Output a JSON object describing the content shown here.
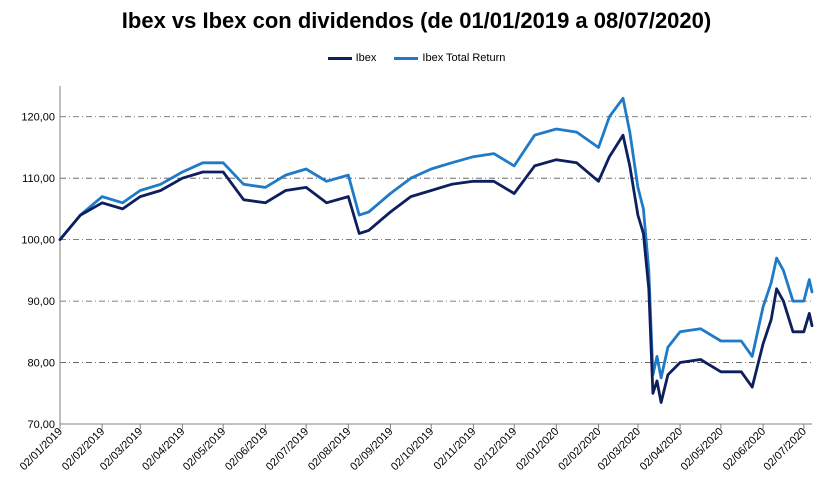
{
  "chart_data": {
    "type": "line",
    "title": "Ibex vs Ibex con dividendos (de 01/01/2019 a 08/07/2020)",
    "xlabel": "",
    "ylabel": "",
    "ylim": [
      70,
      125
    ],
    "y_ticks": [
      "70,00",
      "80,00",
      "90,00",
      "100,00",
      "110,00",
      "120,00"
    ],
    "x_ticks": [
      "02/01/2019",
      "02/02/2019",
      "02/03/2019",
      "02/04/2019",
      "02/05/2019",
      "02/06/2019",
      "02/07/2019",
      "02/08/2019",
      "02/09/2019",
      "02/10/2019",
      "02/11/2019",
      "02/12/2019",
      "02/01/2020",
      "02/02/2020",
      "02/03/2020",
      "02/04/2020",
      "02/05/2020",
      "02/06/2020",
      "02/07/2020"
    ],
    "legend_position": "top-center",
    "grid": "horizontal dash-dot",
    "series": [
      {
        "name": "Ibex",
        "color": "#0d1f5c",
        "x": [
          "02/01/2019",
          "17/01/2019",
          "02/02/2019",
          "17/02/2019",
          "02/03/2019",
          "17/03/2019",
          "02/04/2019",
          "17/04/2019",
          "02/05/2019",
          "17/05/2019",
          "02/06/2019",
          "17/06/2019",
          "02/07/2019",
          "17/07/2019",
          "02/08/2019",
          "10/08/2019",
          "17/08/2019",
          "02/09/2019",
          "17/09/2019",
          "02/10/2019",
          "17/10/2019",
          "02/11/2019",
          "17/11/2019",
          "02/12/2019",
          "17/12/2019",
          "02/01/2020",
          "17/01/2020",
          "02/02/2020",
          "10/02/2020",
          "20/02/2020",
          "25/02/2020",
          "02/03/2020",
          "06/03/2020",
          "10/03/2020",
          "13/03/2020",
          "16/03/2020",
          "19/03/2020",
          "24/03/2020",
          "02/04/2020",
          "17/04/2020",
          "02/05/2020",
          "17/05/2020",
          "25/05/2020",
          "02/06/2020",
          "08/06/2020",
          "12/06/2020",
          "17/06/2020",
          "24/06/2020",
          "02/07/2020",
          "06/07/2020",
          "08/07/2020"
        ],
        "values": [
          100,
          104,
          106,
          105,
          107,
          108,
          110,
          111,
          111,
          106.5,
          106,
          108,
          108.5,
          106,
          107,
          101,
          101.5,
          104.5,
          107,
          108,
          109,
          109.5,
          109.5,
          107.5,
          112,
          113,
          112.5,
          109.5,
          113.5,
          117,
          112,
          104,
          101,
          92,
          75,
          77,
          73.5,
          78,
          80,
          80.5,
          78.5,
          78.5,
          76,
          83,
          87,
          92,
          90,
          85,
          85,
          88,
          86
        ]
      },
      {
        "name": "Ibex Total Return",
        "color": "#1f7ac7",
        "x": [
          "02/01/2019",
          "17/01/2019",
          "02/02/2019",
          "17/02/2019",
          "02/03/2019",
          "17/03/2019",
          "02/04/2019",
          "17/04/2019",
          "02/05/2019",
          "17/05/2019",
          "02/06/2019",
          "17/06/2019",
          "02/07/2019",
          "17/07/2019",
          "02/08/2019",
          "10/08/2019",
          "17/08/2019",
          "02/09/2019",
          "17/09/2019",
          "02/10/2019",
          "17/10/2019",
          "02/11/2019",
          "17/11/2019",
          "02/12/2019",
          "17/12/2019",
          "02/01/2020",
          "17/01/2020",
          "02/02/2020",
          "10/02/2020",
          "20/02/2020",
          "25/02/2020",
          "02/03/2020",
          "06/03/2020",
          "10/03/2020",
          "13/03/2020",
          "16/03/2020",
          "19/03/2020",
          "24/03/2020",
          "02/04/2020",
          "17/04/2020",
          "02/05/2020",
          "17/05/2020",
          "25/05/2020",
          "02/06/2020",
          "08/06/2020",
          "12/06/2020",
          "17/06/2020",
          "24/06/2020",
          "02/07/2020",
          "06/07/2020",
          "08/07/2020"
        ],
        "values": [
          100,
          104,
          107,
          106,
          108,
          109,
          111,
          112.5,
          112.5,
          109,
          108.5,
          110.5,
          111.5,
          109.5,
          110.5,
          104,
          104.5,
          107.5,
          110,
          111.5,
          112.5,
          113.5,
          114,
          112,
          117,
          118,
          117.5,
          115,
          120,
          123,
          117.5,
          108.5,
          105,
          95,
          78,
          81,
          77.5,
          82.5,
          85,
          85.5,
          83.5,
          83.5,
          81,
          89,
          93,
          97,
          95,
          90,
          90,
          93.5,
          91.5
        ]
      }
    ]
  }
}
